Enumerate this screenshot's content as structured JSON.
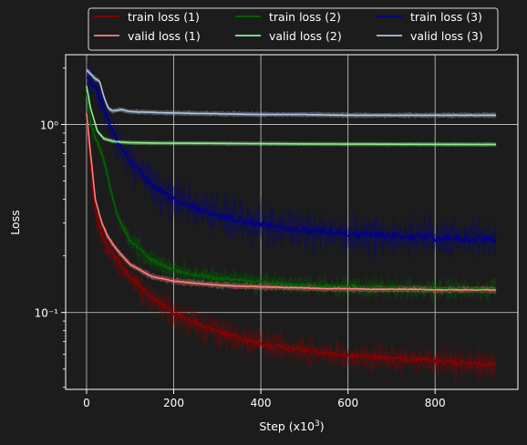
{
  "chart_data": {
    "type": "line",
    "xlabel": "Step (x10",
    "xlabel_sup": "3",
    "xlabel_end": ")",
    "ylabel": "Loss",
    "yscale": "log",
    "xlim": [
      -48,
      990
    ],
    "ylim": [
      0.039,
      2.35
    ],
    "grid": true,
    "legend_position": "top-center",
    "x_ticks": [
      0,
      200,
      400,
      600,
      800
    ],
    "x_tick_labels": [
      "0",
      "200",
      "400",
      "600",
      "800"
    ],
    "y_ticks": [
      0.1,
      1
    ],
    "y_tick_labels": [
      "10⁻¹",
      "10⁰"
    ],
    "colors": {
      "background": "#1c1c1c",
      "plot_background": "#1c1c1c",
      "grid": "#b8b8b8",
      "spine": "#ffffff",
      "train1": "#8b0000",
      "valid1": "#ff7f7f",
      "train2": "#006400",
      "valid2": "#90ee90",
      "train3": "#00008b",
      "valid3": "#b0c4de"
    },
    "series": [
      {
        "name": "train loss (1)",
        "color": "#8b0000",
        "noise": 0.45,
        "x": [
          0,
          8,
          20,
          35,
          50,
          70,
          100,
          150,
          200,
          250,
          300,
          350,
          400,
          450,
          500,
          550,
          600,
          650,
          700,
          750,
          800,
          850,
          900,
          940
        ],
        "y": [
          1.1,
          0.65,
          0.35,
          0.26,
          0.22,
          0.19,
          0.155,
          0.12,
          0.1,
          0.088,
          0.079,
          0.073,
          0.068,
          0.065,
          0.063,
          0.061,
          0.059,
          0.058,
          0.057,
          0.056,
          0.055,
          0.054,
          0.053,
          0.053
        ]
      },
      {
        "name": "valid loss (1)",
        "color": "#ff7f7f",
        "noise": 0.06,
        "x": [
          0,
          8,
          20,
          35,
          50,
          70,
          100,
          150,
          200,
          250,
          300,
          350,
          400,
          450,
          500,
          550,
          600,
          650,
          700,
          750,
          800,
          850,
          900,
          940
        ],
        "y": [
          1.15,
          0.75,
          0.4,
          0.3,
          0.25,
          0.215,
          0.18,
          0.155,
          0.147,
          0.143,
          0.14,
          0.138,
          0.137,
          0.136,
          0.135,
          0.134,
          0.134,
          0.133,
          0.133,
          0.133,
          0.132,
          0.132,
          0.132,
          0.132
        ]
      },
      {
        "name": "train loss (2)",
        "color": "#006400",
        "noise": 0.3,
        "x": [
          0,
          10,
          25,
          40,
          55,
          70,
          100,
          150,
          200,
          250,
          300,
          350,
          400,
          450,
          500,
          550,
          600,
          650,
          700,
          750,
          800,
          850,
          900,
          940
        ],
        "y": [
          1.5,
          1.0,
          0.8,
          0.65,
          0.45,
          0.33,
          0.24,
          0.19,
          0.168,
          0.158,
          0.152,
          0.148,
          0.145,
          0.142,
          0.14,
          0.138,
          0.137,
          0.136,
          0.135,
          0.134,
          0.133,
          0.133,
          0.132,
          0.132
        ]
      },
      {
        "name": "valid loss (2)",
        "color": "#90ee90",
        "noise": 0.01,
        "x": [
          0,
          10,
          25,
          40,
          60,
          80,
          100,
          150,
          200,
          300,
          400,
          500,
          600,
          700,
          800,
          900,
          940
        ],
        "y": [
          1.6,
          1.2,
          0.92,
          0.84,
          0.815,
          0.805,
          0.8,
          0.797,
          0.795,
          0.793,
          0.79,
          0.788,
          0.786,
          0.785,
          0.784,
          0.783,
          0.783
        ]
      },
      {
        "name": "train loss (3)",
        "color": "#00008b",
        "noise": 0.6,
        "x": [
          0,
          20,
          40,
          60,
          80,
          100,
          150,
          200,
          250,
          300,
          350,
          400,
          450,
          500,
          550,
          600,
          650,
          700,
          750,
          800,
          850,
          900,
          940
        ],
        "y": [
          1.75,
          1.6,
          1.2,
          0.9,
          0.75,
          0.63,
          0.48,
          0.4,
          0.36,
          0.33,
          0.31,
          0.295,
          0.285,
          0.275,
          0.268,
          0.262,
          0.258,
          0.255,
          0.252,
          0.25,
          0.248,
          0.246,
          0.245
        ]
      },
      {
        "name": "valid loss (3)",
        "color": "#b0c4de",
        "noise": 0.03,
        "x": [
          0,
          10,
          20,
          30,
          40,
          50,
          60,
          80,
          100,
          150,
          200,
          300,
          400,
          500,
          600,
          700,
          800,
          900,
          940
        ],
        "y": [
          1.95,
          1.85,
          1.75,
          1.7,
          1.4,
          1.22,
          1.18,
          1.2,
          1.17,
          1.16,
          1.15,
          1.14,
          1.13,
          1.13,
          1.12,
          1.12,
          1.12,
          1.12,
          1.12
        ]
      }
    ]
  }
}
